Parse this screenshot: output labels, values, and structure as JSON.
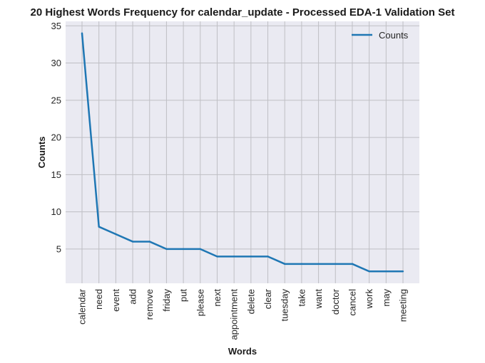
{
  "chart_data": {
    "type": "line",
    "title": "20 Highest Words Frequency for calendar_update - Processed EDA-1 Validation Set",
    "xlabel": "Words",
    "ylabel": "Counts",
    "categories": [
      "calendar",
      "need",
      "event",
      "add",
      "remove",
      "friday",
      "put",
      "please",
      "next",
      "appointment",
      "delete",
      "clear",
      "tuesday",
      "take",
      "want",
      "doctor",
      "cancel",
      "work",
      "may",
      "meeting"
    ],
    "series": [
      {
        "name": "Counts",
        "values": [
          34,
          8,
          7,
          6,
          6,
          5,
          5,
          5,
          4,
          4,
          4,
          4,
          3,
          3,
          3,
          3,
          3,
          2,
          2,
          2
        ],
        "color": "#1f77b4"
      }
    ],
    "ylim": [
      0.4,
      35.6
    ],
    "yticks": [
      5,
      10,
      15,
      20,
      25,
      30,
      35
    ],
    "grid": true,
    "legend_position": "top-right",
    "background": "#eaeaf2",
    "grid_color": "#bfbfc4"
  }
}
